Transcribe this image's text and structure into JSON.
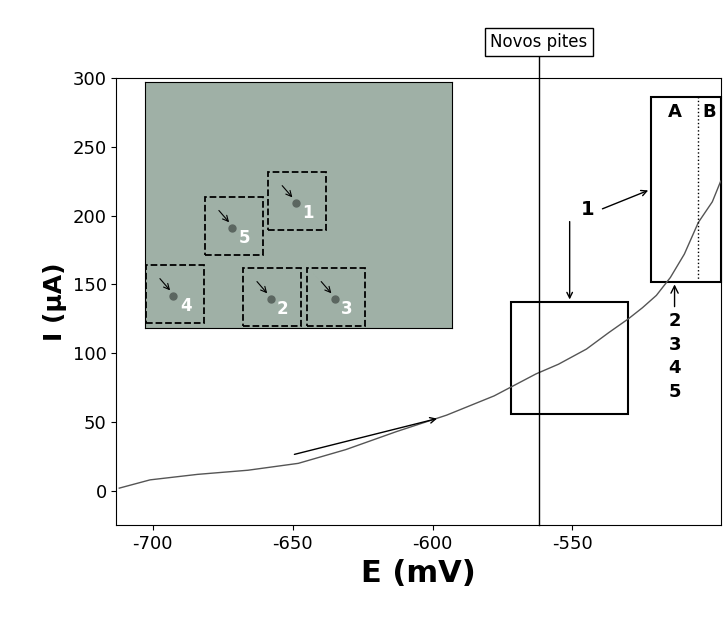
{
  "chart_data": {
    "type": "line",
    "x_label": "E (mV)",
    "y_label": "I (µA)",
    "x": [
      -712,
      -701,
      -684,
      -666,
      -648,
      -631,
      -613,
      -595,
      -578,
      -563,
      -555,
      -545,
      -537,
      -530,
      -525,
      -520,
      -515,
      -510,
      -505,
      -500,
      -497
    ],
    "values": [
      2,
      8,
      12,
      15,
      20,
      30,
      43,
      55,
      69,
      85,
      92,
      103,
      115,
      125,
      133,
      142,
      155,
      172,
      195,
      210,
      225
    ],
    "color": "#555555",
    "xlim": [
      -713,
      -497
    ],
    "ylim": [
      -25,
      300
    ],
    "xticks": [
      -700,
      -650,
      -600,
      -550
    ],
    "yticks": [
      0,
      50,
      100,
      150,
      200,
      250,
      300
    ],
    "annotations": {
      "new_pits_label": "Novos pites",
      "new_pits_E": -562,
      "box_1": {
        "xlim": [
          -572,
          -530
        ],
        "ylim": [
          56,
          137
        ]
      },
      "box_2": {
        "xlim": [
          -522,
          -497
        ],
        "ylim": [
          152,
          286
        ],
        "divider_E": -505,
        "left_label": "A",
        "right_label": "B"
      },
      "box_label": "1",
      "pit_labels": [
        "2",
        "3",
        "4",
        "5"
      ],
      "inset_labels": [
        "1",
        "2",
        "3",
        "4",
        "5"
      ]
    }
  }
}
